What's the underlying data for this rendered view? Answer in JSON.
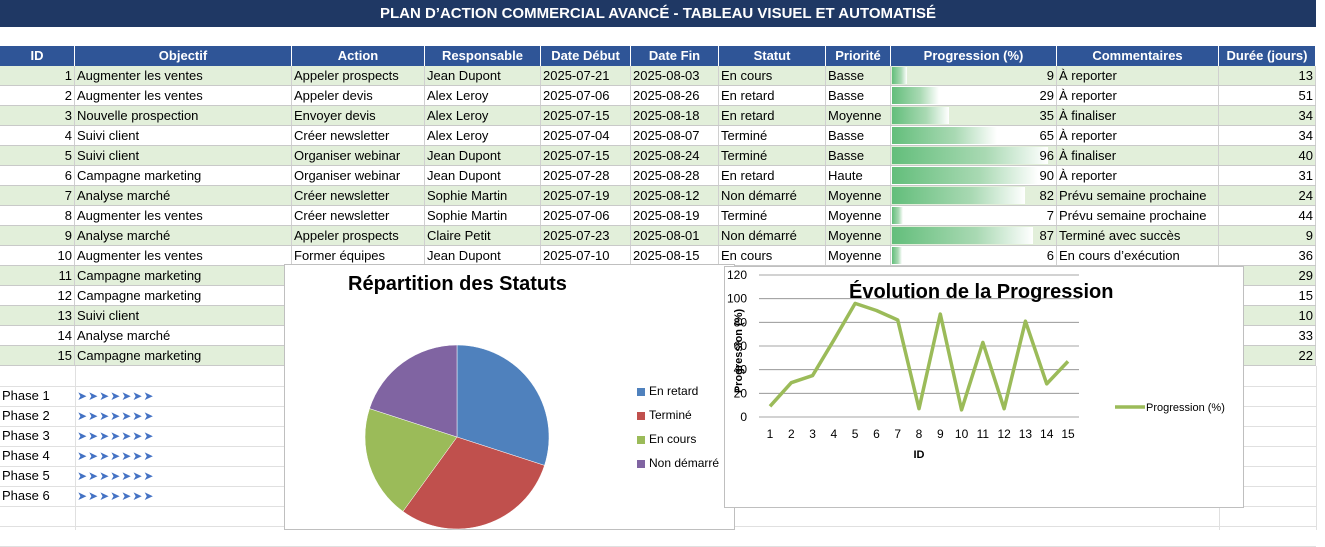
{
  "title": "PLAN D’ACTION COMMERCIAL AVANCÉ - TABLEAU VISUEL ET AUTOMATISÉ",
  "columns": [
    "ID",
    "Objectif",
    "Action",
    "Responsable",
    "Date Début",
    "Date Fin",
    "Statut",
    "Priorité",
    "Progression (%)",
    "Commentaires",
    "Durée (jours)"
  ],
  "rows": [
    {
      "id": "1",
      "objectif": "Augmenter les ventes",
      "action": "Appeler prospects",
      "responsable": "Jean Dupont",
      "debut": "2025-07-21",
      "fin": "2025-08-03",
      "statut": "En cours",
      "priorite": "Basse",
      "progression": "9",
      "commentaire": "À reporter",
      "duree": "13"
    },
    {
      "id": "2",
      "objectif": "Augmenter les ventes",
      "action": "Appeler devis",
      "responsable": "Alex Leroy",
      "debut": "2025-07-06",
      "fin": "2025-08-26",
      "statut": "En retard",
      "priorite": "Basse",
      "progression": "29",
      "commentaire": "À reporter",
      "duree": "51"
    },
    {
      "id": "3",
      "objectif": "Nouvelle prospection",
      "action": "Envoyer devis",
      "responsable": "Alex Leroy",
      "debut": "2025-07-15",
      "fin": "2025-08-18",
      "statut": "En retard",
      "priorite": "Moyenne",
      "progression": "35",
      "commentaire": "À finaliser",
      "duree": "34"
    },
    {
      "id": "4",
      "objectif": "Suivi client",
      "action": "Créer newsletter",
      "responsable": "Alex Leroy",
      "debut": "2025-07-04",
      "fin": "2025-08-07",
      "statut": "Terminé",
      "priorite": "Basse",
      "progression": "65",
      "commentaire": "À reporter",
      "duree": "34"
    },
    {
      "id": "5",
      "objectif": "Suivi client",
      "action": "Organiser webinar",
      "responsable": "Jean Dupont",
      "debut": "2025-07-15",
      "fin": "2025-08-24",
      "statut": "Terminé",
      "priorite": "Basse",
      "progression": "96",
      "commentaire": "À finaliser",
      "duree": "40"
    },
    {
      "id": "6",
      "objectif": "Campagne marketing",
      "action": "Organiser webinar",
      "responsable": "Jean Dupont",
      "debut": "2025-07-28",
      "fin": "2025-08-28",
      "statut": "En retard",
      "priorite": "Haute",
      "progression": "90",
      "commentaire": "À reporter",
      "duree": "31"
    },
    {
      "id": "7",
      "objectif": "Analyse marché",
      "action": "Créer newsletter",
      "responsable": "Sophie Martin",
      "debut": "2025-07-19",
      "fin": "2025-08-12",
      "statut": "Non démarré",
      "priorite": "Moyenne",
      "progression": "82",
      "commentaire": "Prévu semaine prochaine",
      "duree": "24"
    },
    {
      "id": "8",
      "objectif": "Augmenter les ventes",
      "action": "Créer newsletter",
      "responsable": "Sophie Martin",
      "debut": "2025-07-06",
      "fin": "2025-08-19",
      "statut": "Terminé",
      "priorite": "Moyenne",
      "progression": "7",
      "commentaire": "Prévu semaine prochaine",
      "duree": "44"
    },
    {
      "id": "9",
      "objectif": "Analyse marché",
      "action": "Appeler prospects",
      "responsable": "Claire Petit",
      "debut": "2025-07-23",
      "fin": "2025-08-01",
      "statut": "Non démarré",
      "priorite": "Moyenne",
      "progression": "87",
      "commentaire": "Terminé avec succès",
      "duree": "9"
    },
    {
      "id": "10",
      "objectif": "Augmenter les ventes",
      "action": "Former équipes",
      "responsable": "Jean Dupont",
      "debut": "2025-07-10",
      "fin": "2025-08-15",
      "statut": "En cours",
      "priorite": "Moyenne",
      "progression": "6",
      "commentaire": "En cours d’exécution",
      "duree": "36"
    },
    {
      "id": "11",
      "objectif": "Campagne marketing",
      "action": "",
      "responsable": "",
      "debut": "",
      "fin": "",
      "statut": "",
      "priorite": "",
      "progression": "",
      "commentaire": "",
      "duree": "29"
    },
    {
      "id": "12",
      "objectif": "Campagne marketing",
      "action": "",
      "responsable": "",
      "debut": "",
      "fin": "",
      "statut": "",
      "priorite": "",
      "progression": "",
      "commentaire": "",
      "duree": "15"
    },
    {
      "id": "13",
      "objectif": "Suivi client",
      "action": "",
      "responsable": "",
      "debut": "",
      "fin": "",
      "statut": "",
      "priorite": "",
      "progression": "",
      "commentaire": "",
      "duree": "10"
    },
    {
      "id": "14",
      "objectif": "Analyse marché",
      "action": "",
      "responsable": "",
      "debut": "",
      "fin": "",
      "statut": "",
      "priorite": "",
      "progression": "",
      "commentaire": "",
      "duree": "33"
    },
    {
      "id": "15",
      "objectif": "Campagne marketing",
      "action": "",
      "responsable": "",
      "debut": "",
      "fin": "",
      "statut": "",
      "priorite": "",
      "progression": "",
      "commentaire": "",
      "duree": "22"
    }
  ],
  "phases": [
    {
      "label": "Phase 1",
      "arrows": "➤➤➤➤➤➤➤"
    },
    {
      "label": "Phase 2",
      "arrows": "➤➤➤➤➤➤➤"
    },
    {
      "label": "Phase 3",
      "arrows": "➤➤➤➤➤➤➤"
    },
    {
      "label": "Phase 4",
      "arrows": "➤➤➤➤➤➤➤"
    },
    {
      "label": "Phase 5",
      "arrows": "➤➤➤➤➤➤➤"
    },
    {
      "label": "Phase 6",
      "arrows": "➤➤➤➤➤➤➤"
    }
  ],
  "colors": {
    "header": "#2f5597",
    "title": "#1f3864",
    "alt_row": "#e2efda",
    "databar": "#63be7b",
    "line": "#9bbb59",
    "arrow": "#4472c4"
  },
  "chart_data": [
    {
      "type": "pie",
      "title": "Répartition des Statuts",
      "categories": [
        "En retard",
        "Terminé",
        "En cours",
        "Non démarré"
      ],
      "values": [
        3,
        3,
        2,
        2
      ],
      "colors": [
        "#4f81bd",
        "#c0504d",
        "#9bbb59",
        "#8064a2"
      ],
      "legend": "right"
    },
    {
      "type": "line",
      "title": "Évolution de la Progression",
      "xlabel": "ID",
      "ylabel": "Progression (%)",
      "x": [
        1,
        2,
        3,
        4,
        5,
        6,
        7,
        8,
        9,
        10,
        11,
        12,
        13,
        14,
        15
      ],
      "series": [
        {
          "name": "Progression (%)",
          "values": [
            9,
            29,
            35,
            65,
            96,
            90,
            82,
            7,
            87,
            6,
            63,
            7,
            81,
            28,
            47
          ]
        }
      ],
      "ylim": [
        0,
        120
      ],
      "yticks": [
        0,
        20,
        40,
        60,
        80,
        100,
        120
      ],
      "grid": true,
      "legend": "right"
    }
  ]
}
